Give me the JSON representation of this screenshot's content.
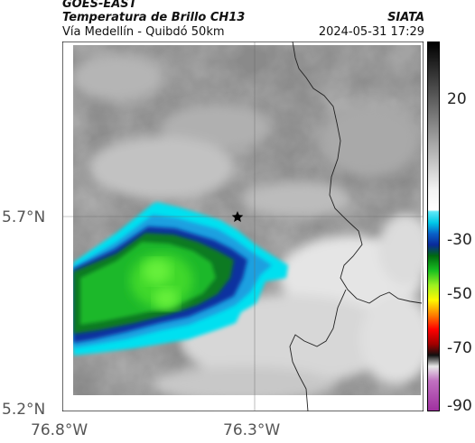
{
  "header": {
    "satellite": "GOES-EAST",
    "product": "Temperatura de Brillo CH13",
    "location": "Vía Medellín - Quibdó 50km",
    "organization": "SIATA",
    "timestamp": "2024-05-31 17:29"
  },
  "map": {
    "y_axis_labels": [
      "5.7°N",
      "5.2°N"
    ],
    "x_axis_labels": [
      "76.8°W",
      "76.3°W"
    ],
    "marker_icon": "star-icon"
  },
  "colorbar": {
    "tick_labels": [
      "20",
      "-30",
      "-50",
      "-70",
      "-90"
    ]
  }
}
